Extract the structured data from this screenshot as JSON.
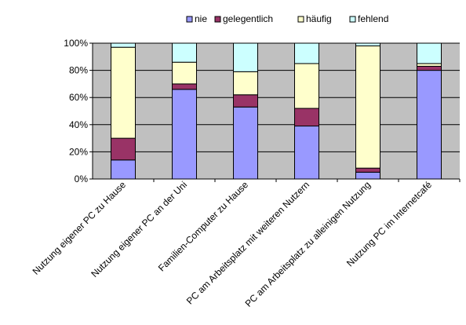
{
  "chart_data": {
    "type": "bar",
    "stacked": true,
    "percent_stacked": true,
    "categories": [
      "Nutzung eigener PC zu Hause",
      "Nutzung eigener PC an der Uni",
      "Familien-Computer zu Hause",
      "PC am Arbeitsplatz mit weiteren Nutzern",
      "PC am Arbeitsplatz zu alleinigen Nutzung",
      "Nutzung PC im Internetcafé"
    ],
    "series": [
      {
        "name": "nie",
        "color": "#9999ff",
        "values": [
          14,
          66,
          53,
          39,
          5,
          80
        ]
      },
      {
        "name": "gelegentlich",
        "color": "#993366",
        "values": [
          16,
          4,
          9,
          13,
          3,
          3
        ]
      },
      {
        "name": "häufig",
        "color": "#ffffcc",
        "values": [
          67,
          16,
          17,
          33,
          90,
          2
        ]
      },
      {
        "name": "fehlend",
        "color": "#ccffff",
        "values": [
          3,
          14,
          21,
          15,
          2,
          15
        ]
      }
    ],
    "ylim": [
      0,
      100
    ],
    "yticks": [
      "0%",
      "20%",
      "40%",
      "60%",
      "80%",
      "100%"
    ],
    "grid": true,
    "plot_background": "#c0c0c0",
    "legend_position": "top"
  }
}
